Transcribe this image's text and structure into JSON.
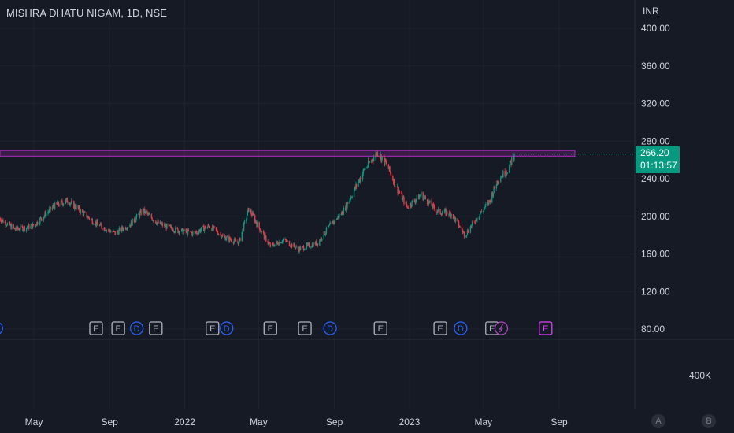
{
  "header": {
    "symbol_title": "MISHRA DHATU NIGAM, 1D, NSE",
    "currency": "INR"
  },
  "price_tag": {
    "price": "266.20",
    "countdown": "01:13:57",
    "color": "#089981"
  },
  "volume_axis": {
    "label": "400K"
  },
  "scale_buttons": {
    "auto": "A",
    "log": "B"
  },
  "colors": {
    "background": "#161a25",
    "up": "#089981",
    "down": "#f23645",
    "resistance_zone": "#9c27b0",
    "dividend": "#2962ff",
    "earnings": "#b2b5be",
    "split": "#ab47bc",
    "upcoming_earnings": "#e040fb"
  },
  "chart_data": {
    "type": "candlestick",
    "title": "MISHRA DHATU NIGAM, 1D, NSE",
    "ylabel": "INR",
    "y_ticks": [
      400,
      360,
      320,
      280,
      240,
      200,
      160,
      120,
      80
    ],
    "y_tick_labels": [
      "400.00",
      "360.00",
      "320.00",
      "280.00",
      "240.00",
      "200.00",
      "160.00",
      "120.00",
      "80.00"
    ],
    "ylim": [
      66,
      413
    ],
    "x_tick_labels": [
      "May",
      "Sep",
      "2022",
      "May",
      "Sep",
      "2023",
      "May",
      "Sep"
    ],
    "x_ticks": [
      "2021-05",
      "2021-09",
      "2022-01",
      "2022-05",
      "2022-09",
      "2023-01",
      "2023-05",
      "2023-09"
    ],
    "last_price": 266.2,
    "resistance_zone": {
      "low": 264,
      "high": 270
    },
    "close_series": [
      {
        "date": "2021-03-01",
        "close": 200
      },
      {
        "date": "2021-04-01",
        "close": 186
      },
      {
        "date": "2021-05-01",
        "close": 190
      },
      {
        "date": "2021-06-01",
        "close": 210
      },
      {
        "date": "2021-06-25",
        "close": 217
      },
      {
        "date": "2021-07-20",
        "close": 203
      },
      {
        "date": "2021-08-15",
        "close": 190
      },
      {
        "date": "2021-09-10",
        "close": 182
      },
      {
        "date": "2021-10-05",
        "close": 192
      },
      {
        "date": "2021-10-25",
        "close": 206
      },
      {
        "date": "2021-11-20",
        "close": 192
      },
      {
        "date": "2021-12-20",
        "close": 185
      },
      {
        "date": "2022-01-15",
        "close": 182
      },
      {
        "date": "2022-02-10",
        "close": 190
      },
      {
        "date": "2022-03-05",
        "close": 178
      },
      {
        "date": "2022-03-30",
        "close": 172
      },
      {
        "date": "2022-04-15",
        "close": 208
      },
      {
        "date": "2022-04-30",
        "close": 190
      },
      {
        "date": "2022-05-20",
        "close": 168
      },
      {
        "date": "2022-06-10",
        "close": 175
      },
      {
        "date": "2022-07-05",
        "close": 165
      },
      {
        "date": "2022-08-05",
        "close": 172
      },
      {
        "date": "2022-08-25",
        "close": 190
      },
      {
        "date": "2022-09-15",
        "close": 205
      },
      {
        "date": "2022-10-01",
        "close": 225
      },
      {
        "date": "2022-10-20",
        "close": 250
      },
      {
        "date": "2022-11-10",
        "close": 268
      },
      {
        "date": "2022-11-25",
        "close": 255
      },
      {
        "date": "2022-12-10",
        "close": 232
      },
      {
        "date": "2022-12-28",
        "close": 210
      },
      {
        "date": "2023-01-20",
        "close": 223
      },
      {
        "date": "2023-02-15",
        "close": 205
      },
      {
        "date": "2023-03-10",
        "close": 203
      },
      {
        "date": "2023-04-01",
        "close": 180
      },
      {
        "date": "2023-04-20",
        "close": 198
      },
      {
        "date": "2023-05-10",
        "close": 215
      },
      {
        "date": "2023-05-25",
        "close": 240
      },
      {
        "date": "2023-06-10",
        "close": 250
      },
      {
        "date": "2023-06-20",
        "close": 266
      }
    ],
    "events": [
      {
        "type": "D",
        "date": "2021-03-01"
      },
      {
        "type": "E",
        "date": "2021-08-10"
      },
      {
        "type": "E",
        "date": "2021-09-15"
      },
      {
        "type": "D",
        "date": "2021-10-15"
      },
      {
        "type": "E",
        "date": "2021-11-15"
      },
      {
        "type": "E",
        "date": "2022-02-15"
      },
      {
        "type": "D",
        "date": "2022-03-10"
      },
      {
        "type": "E",
        "date": "2022-05-20"
      },
      {
        "type": "E",
        "date": "2022-07-15"
      },
      {
        "type": "D",
        "date": "2022-08-25"
      },
      {
        "type": "E",
        "date": "2022-11-15"
      },
      {
        "type": "E",
        "date": "2023-02-20"
      },
      {
        "type": "D",
        "date": "2023-03-25"
      },
      {
        "type": "E",
        "date": "2023-05-15"
      },
      {
        "type": "S",
        "date": "2023-05-30"
      },
      {
        "type": "E",
        "date": "2023-08-10",
        "upcoming": true
      }
    ]
  }
}
